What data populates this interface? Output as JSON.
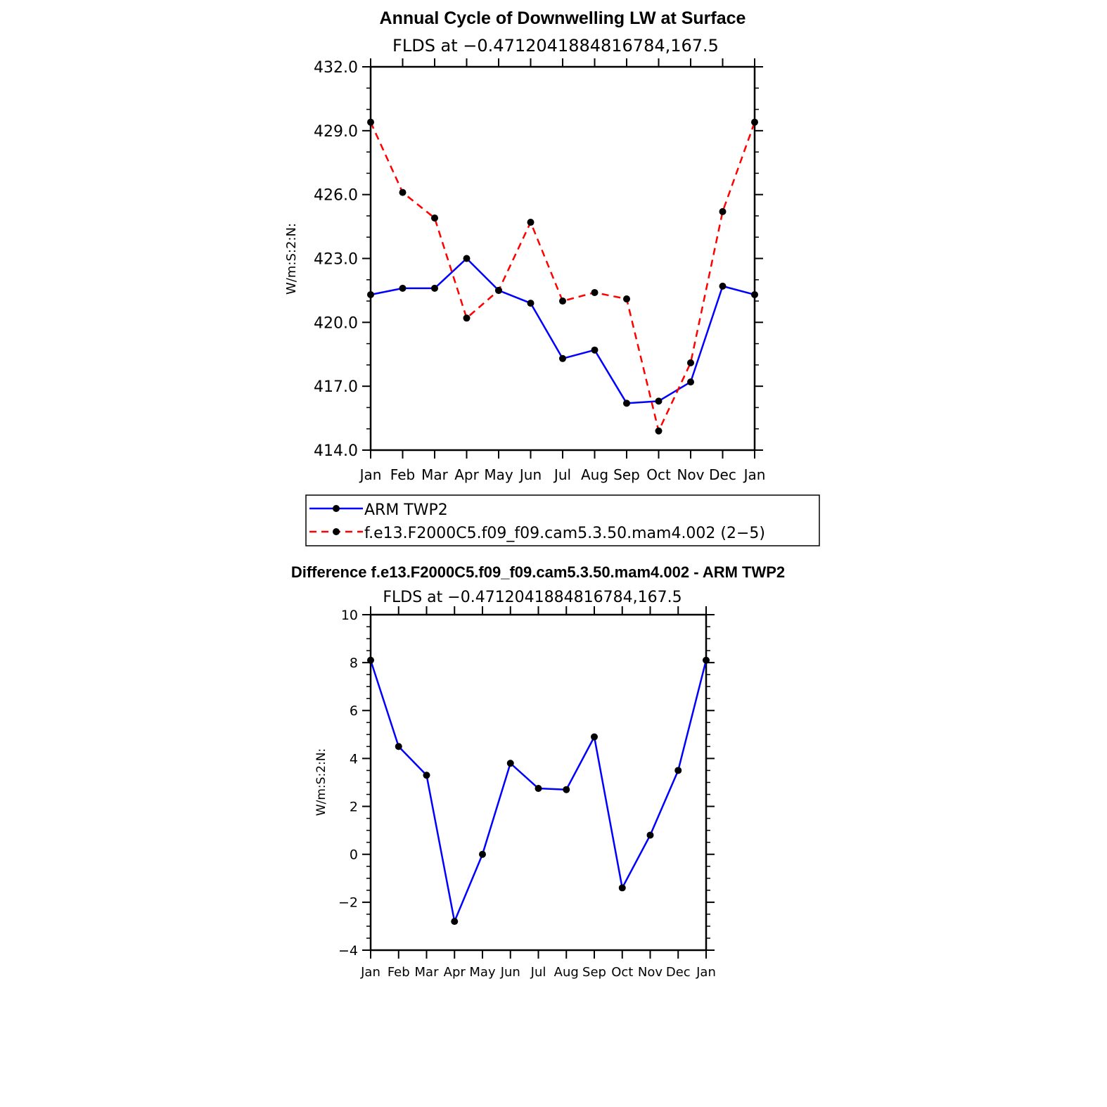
{
  "chart_data": [
    {
      "type": "line",
      "title": "Annual Cycle of Downwelling LW at Surface",
      "subtitle": "FLDS at −0.4712041884816784,167.5",
      "ylabel": "W/m:S:2:N:",
      "categories": [
        "Jan",
        "Feb",
        "Mar",
        "Apr",
        "May",
        "Jun",
        "Jul",
        "Aug",
        "Sep",
        "Oct",
        "Nov",
        "Dec",
        "Jan"
      ],
      "ylim": [
        414,
        432
      ],
      "yticks": [
        "414.0",
        "417.0",
        "420.0",
        "423.0",
        "426.0",
        "429.0",
        "432.0"
      ],
      "series": [
        {
          "name": "ARM TWP2",
          "color": "#0000ff",
          "dash": "solid",
          "values": [
            421.3,
            421.6,
            421.6,
            423.0,
            421.5,
            420.9,
            418.3,
            418.7,
            416.2,
            416.3,
            417.2,
            421.7,
            421.3
          ]
        },
        {
          "name": "f.e13.F2000C5.f09_f09.cam5.3.50.mam4.002 (2−5)",
          "color": "#ff0000",
          "dash": "dashed",
          "values": [
            429.4,
            426.1,
            424.9,
            420.2,
            421.5,
            424.7,
            421.0,
            421.4,
            421.1,
            414.9,
            418.1,
            425.2,
            429.4
          ]
        }
      ]
    },
    {
      "type": "line",
      "title": "Difference f.e13.F2000C5.f09_f09.cam5.3.50.mam4.002 - ARM TWP2",
      "subtitle": "FLDS at −0.4712041884816784,167.5",
      "ylabel": "W/m:S:2:N:",
      "categories": [
        "Jan",
        "Feb",
        "Mar",
        "Apr",
        "May",
        "Jun",
        "Jul",
        "Aug",
        "Sep",
        "Oct",
        "Nov",
        "Dec",
        "Jan"
      ],
      "ylim": [
        -4,
        10
      ],
      "yticks": [
        "−4",
        "−2",
        "0",
        "2",
        "4",
        "6",
        "8",
        "10"
      ],
      "series": [
        {
          "color": "#0000ff",
          "dash": "solid",
          "values": [
            8.1,
            4.5,
            3.3,
            -2.8,
            0.0,
            3.8,
            2.75,
            2.7,
            4.9,
            -1.4,
            0.8,
            3.5,
            8.1
          ]
        }
      ]
    }
  ]
}
